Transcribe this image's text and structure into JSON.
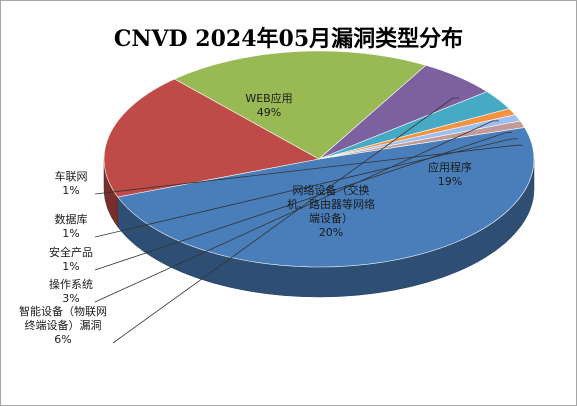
{
  "chart_data": {
    "type": "pie",
    "title": "CNVD 2024年05月漏洞类型分布",
    "three_d": true,
    "legend": "none",
    "slices": [
      {
        "label_lines": [
          "WEB应用"
        ],
        "percent_label": "49%",
        "value": 49,
        "color": "#4a7ebb"
      },
      {
        "label_lines": [
          "应用程序"
        ],
        "percent_label": "19%",
        "value": 19,
        "color": "#be4b48"
      },
      {
        "label_lines": [
          "网络设备（交换",
          "机、路由器等网络",
          "端设备）"
        ],
        "percent_label": "20%",
        "value": 20,
        "color": "#98b954"
      },
      {
        "label_lines": [
          "智能设备（物联网",
          "终端设备）漏洞"
        ],
        "percent_label": "6%",
        "value": 6,
        "color": "#7d60a0"
      },
      {
        "label_lines": [
          "操作系统"
        ],
        "percent_label": "3%",
        "value": 3,
        "color": "#46aac4"
      },
      {
        "label_lines": [
          "安全产品"
        ],
        "percent_label": "1%",
        "value": 1,
        "color": "#f69240"
      },
      {
        "label_lines": [
          "数据库"
        ],
        "percent_label": "1%",
        "value": 1,
        "color": "#9dbef0"
      },
      {
        "label_lines": [
          "车联网"
        ],
        "percent_label": "1%",
        "value": 1,
        "color": "#c29a98"
      }
    ]
  }
}
